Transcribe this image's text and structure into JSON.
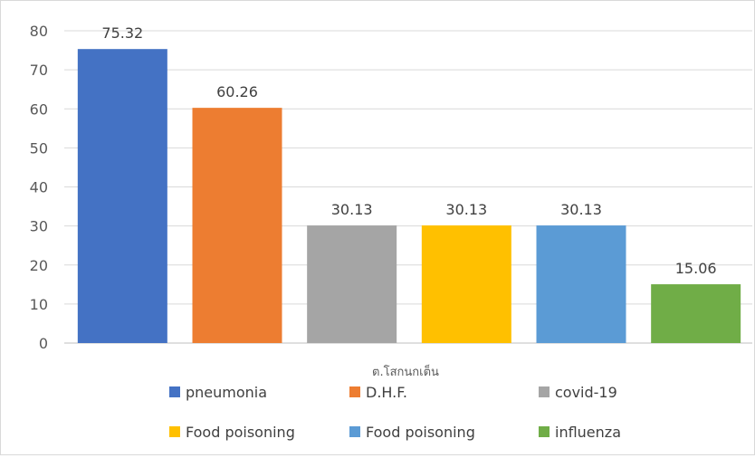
{
  "chart_data": {
    "type": "bar",
    "title": "",
    "xlabel": "ต.โสกนกเต็น",
    "ylabel": "",
    "ylim": [
      0,
      80
    ],
    "yticks": [
      0,
      10,
      20,
      30,
      40,
      50,
      60,
      70,
      80
    ],
    "grid": true,
    "legend_position": "bottom",
    "series": [
      {
        "name": "pneumonia",
        "value": 75.32,
        "label": "75.32",
        "color": "#4472c4"
      },
      {
        "name": "D.H.F.",
        "value": 60.26,
        "label": "60.26",
        "color": "#ed7d31"
      },
      {
        "name": "covid-19",
        "value": 30.13,
        "label": "30.13",
        "color": "#a5a5a5"
      },
      {
        "name": "Food poisoning",
        "value": 30.13,
        "label": "30.13",
        "color": "#ffc000"
      },
      {
        "name": "Food poisoning",
        "value": 30.13,
        "label": "30.13",
        "color": "#5b9bd5"
      },
      {
        "name": "influenza",
        "value": 15.06,
        "label": "15.06",
        "color": "#70ad47"
      }
    ]
  }
}
